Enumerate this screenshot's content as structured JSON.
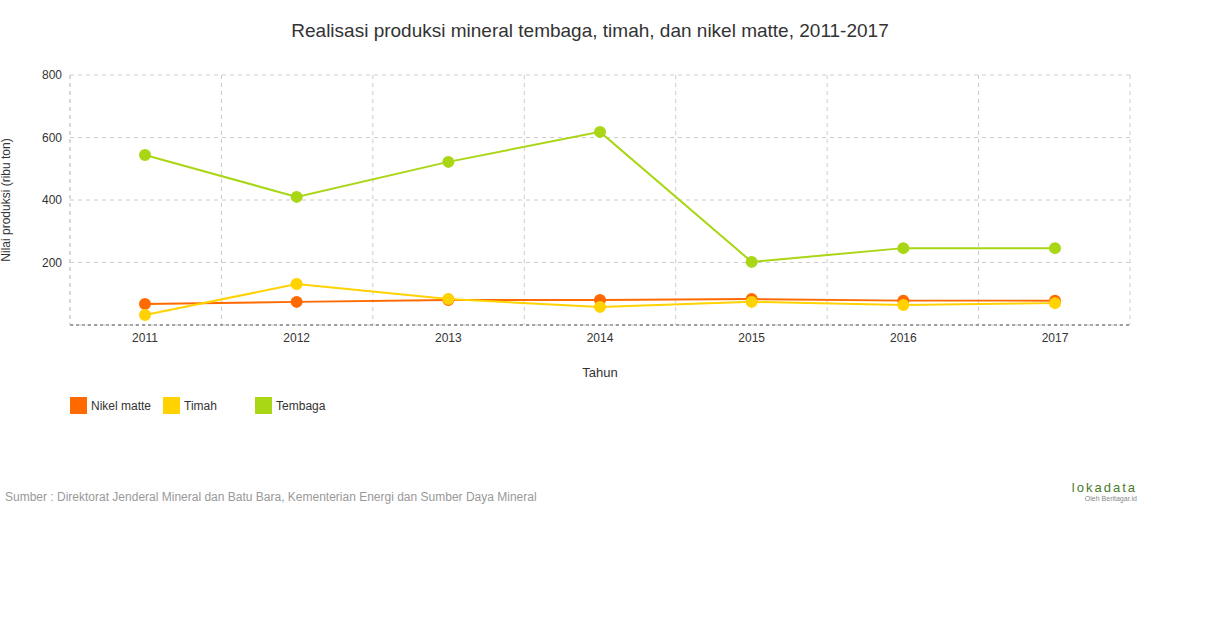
{
  "chart_data": {
    "type": "line",
    "title": "Realisasi produksi mineral tembaga, timah, dan nikel matte, 2011-2017",
    "x_label": "Tahun",
    "y_label": "Nilai produksi (ribu ton)",
    "categories": [
      "2011",
      "2012",
      "2013",
      "2014",
      "2015",
      "2016",
      "2017"
    ],
    "series": [
      {
        "name": "Nikel matte",
        "color": "#ff6a00",
        "values": [
          67,
          74,
          80,
          80,
          83,
          78,
          78
        ]
      },
      {
        "name": "Timah",
        "color": "#ffd200",
        "values": [
          32,
          131,
          83,
          58,
          74,
          64,
          70
        ]
      },
      {
        "name": "Tembaga",
        "color": "#a9d615",
        "values": [
          544,
          410,
          522,
          618,
          202,
          246,
          246
        ]
      }
    ],
    "ylim": [
      0,
      800
    ],
    "yticks": [
      200,
      400,
      600,
      800
    ],
    "grid": true,
    "marker": "circle",
    "legend": "bottom-left",
    "source": "Sumber : Direktorat Jenderal Mineral dan Batu Bara, Kementerian Energi dan Sumber Daya Mineral",
    "credit": [
      "lokadata",
      "Oleh Beritagar.id"
    ]
  }
}
